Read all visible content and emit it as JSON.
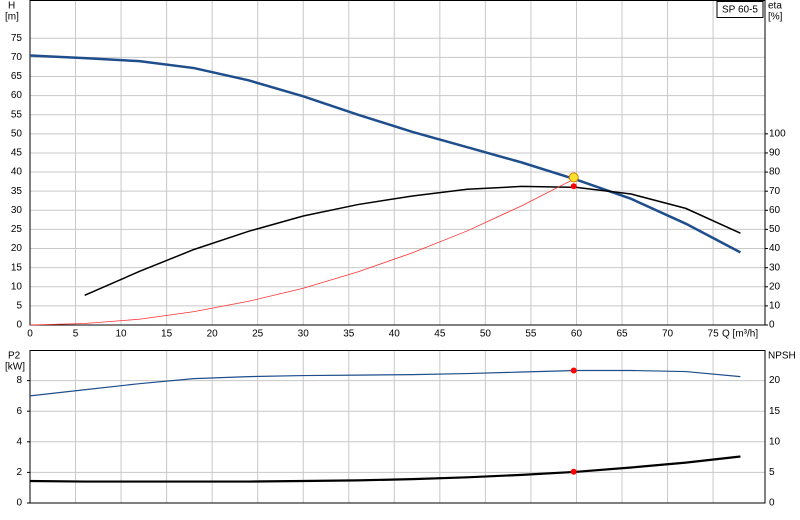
{
  "chart_data": [
    {
      "type": "line",
      "title": "SP 60-5",
      "ylabel": "H",
      "yunit": "[m]",
      "y2label": "eta",
      "y2unit": "[%]",
      "xlabel": "Q [m³/h]",
      "xlim": [
        0,
        80.7
      ],
      "xticks": [
        0,
        5,
        10,
        15,
        20,
        25,
        30,
        35,
        40,
        45,
        50,
        55,
        60,
        65,
        70,
        75
      ],
      "xtick_labels": true,
      "ylim": [
        0,
        85
      ],
      "yticks": [
        0,
        5,
        10,
        15,
        20,
        25,
        30,
        35,
        40,
        45,
        50,
        55,
        60,
        65,
        70,
        75
      ],
      "y2lim": [
        0,
        170
      ],
      "y2ticks": [
        0,
        10,
        20,
        30,
        40,
        50,
        60,
        70,
        80,
        90,
        100
      ],
      "grid": "y",
      "series": [
        {
          "style": "line",
          "axis": "y",
          "color": "#1f4e8c",
          "width": 2.5,
          "x": [
            0,
            6,
            12,
            18,
            24,
            30,
            36,
            42,
            48,
            54,
            60,
            66,
            72,
            78
          ],
          "values": [
            70.5,
            69.8,
            69,
            67.2,
            64,
            59.8,
            55,
            50.5,
            46.5,
            42.5,
            38,
            33,
            26.5,
            19
          ]
        },
        {
          "style": "line",
          "axis": "y2",
          "color": "#000000",
          "width": 1.5,
          "x": [
            6,
            12,
            18,
            24,
            30,
            36,
            42,
            48,
            54,
            60,
            66,
            72,
            78
          ],
          "values": [
            15.5,
            28,
            39.5,
            49,
            57,
            63,
            67.5,
            71,
            72.5,
            72,
            68.5,
            61,
            48
          ]
        },
        {
          "style": "line",
          "axis": "y",
          "color": "#ff3030",
          "width": 0.8,
          "x": [
            0,
            6,
            12,
            18,
            24,
            30,
            36,
            42,
            48,
            54,
            60
          ],
          "values": [
            0,
            0.4,
            1.5,
            3.5,
            6.2,
            9.6,
            13.9,
            18.9,
            24.6,
            31.2,
            38.5
          ]
        },
        {
          "style": "marker",
          "axis": "y2",
          "color": "#ff0000",
          "x": [
            59.7
          ],
          "values": [
            72.6
          ]
        },
        {
          "style": "marker",
          "axis": "y",
          "color": "#ffe030",
          "x": [
            59.7
          ],
          "values": [
            38.6
          ]
        }
      ]
    },
    {
      "type": "line",
      "ylabel": "P2",
      "yunit": "[kW]",
      "y2label": "NPSH",
      "xlim": [
        0,
        80.7
      ],
      "xticks": [
        0,
        5,
        10,
        15,
        20,
        25,
        30,
        35,
        40,
        45,
        50,
        55,
        60,
        65,
        70,
        75
      ],
      "xtick_labels": false,
      "ylim": [
        0,
        10
      ],
      "yticks": [
        0,
        2,
        4,
        6,
        8
      ],
      "y2lim": [
        0,
        25
      ],
      "y2ticks": [
        0,
        5,
        10,
        15,
        20
      ],
      "grid": "y2",
      "series": [
        {
          "style": "line",
          "axis": "y",
          "color": "#1f4e8c",
          "width": 1.2,
          "x": [
            0,
            6,
            12,
            18,
            24,
            30,
            36,
            42,
            48,
            54,
            60,
            66,
            72,
            78
          ],
          "values": [
            7.0,
            7.4,
            7.8,
            8.13,
            8.26,
            8.33,
            8.36,
            8.39,
            8.46,
            8.56,
            8.66,
            8.66,
            8.59,
            8.26
          ]
        },
        {
          "style": "line",
          "axis": "y2",
          "color": "#000000",
          "width": 2.2,
          "x": [
            0,
            6,
            12,
            18,
            24,
            30,
            36,
            42,
            48,
            54,
            60,
            66,
            72,
            78
          ],
          "values": [
            3.6,
            3.5,
            3.5,
            3.5,
            3.5,
            3.6,
            3.7,
            3.9,
            4.2,
            4.6,
            5.1,
            5.8,
            6.6,
            7.6
          ]
        },
        {
          "style": "marker",
          "axis": "y",
          "color": "#ff0000",
          "x": [
            59.7
          ],
          "values": [
            8.66
          ]
        },
        {
          "style": "marker",
          "axis": "y2",
          "color": "#ff0000",
          "x": [
            59.7
          ],
          "values": [
            5.1
          ]
        }
      ]
    }
  ]
}
